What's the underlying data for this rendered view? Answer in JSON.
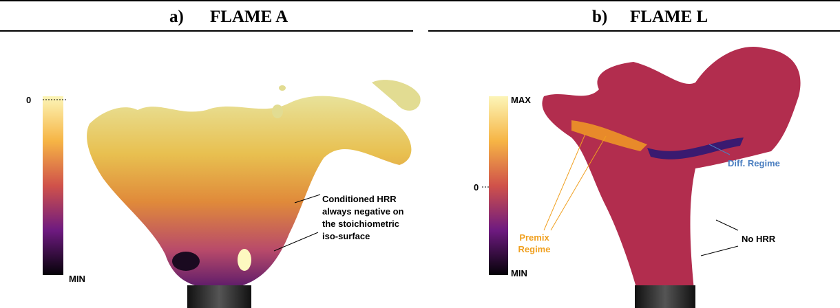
{
  "header": {
    "left": {
      "label": "a)",
      "title": "FLAME A"
    },
    "right": {
      "label": "b)",
      "title": "FLAME L"
    }
  },
  "panels": [
    {
      "colorbar": {
        "top": "0",
        "bottom": "MIN"
      },
      "annotations": [
        {
          "lines": [
            "Conditioned HRR",
            "always negative on",
            "the stoichiometric",
            "iso-surface"
          ]
        }
      ]
    },
    {
      "colorbar": {
        "top": "MAX",
        "middle": "0",
        "bottom": "MIN"
      },
      "annotations": [
        {
          "lines": [
            "Premix",
            "Regime"
          ]
        },
        {
          "lines": [
            "Diff. Regime"
          ]
        },
        {
          "lines": [
            "No HRR"
          ]
        }
      ]
    }
  ]
}
